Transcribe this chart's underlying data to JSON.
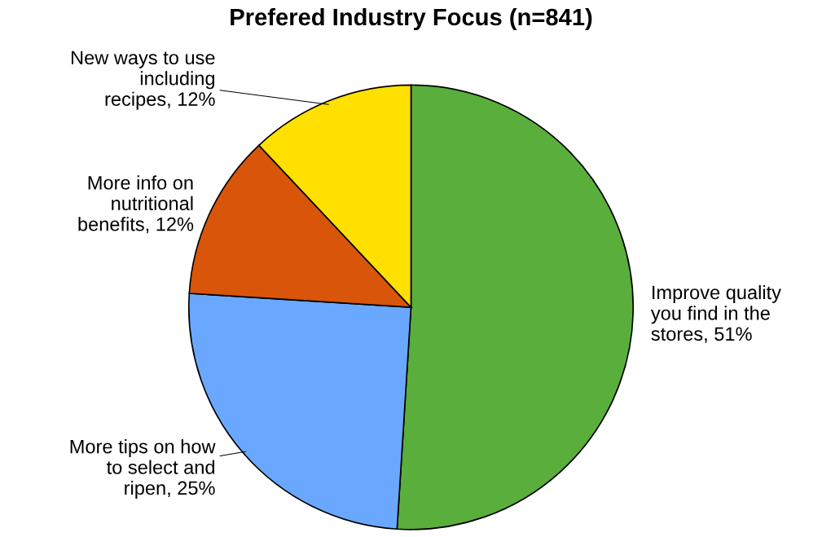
{
  "chart_data": {
    "type": "pie",
    "title": "Prefered Industry Focus (n=841)",
    "categories": [
      "Improve quality\nyou find in the\nstores",
      "More tips on how\nto select and\nripen",
      "More info on\nnutritional\nbenefits",
      "New ways to use\nincluding\nrecipes"
    ],
    "values": [
      51,
      25,
      12,
      12
    ],
    "value_labels": [
      "51%",
      "25%",
      "12%",
      "12%"
    ],
    "colors": [
      "#5aae3c",
      "#6aa8ff",
      "#d9550a",
      "#ffe000"
    ]
  }
}
